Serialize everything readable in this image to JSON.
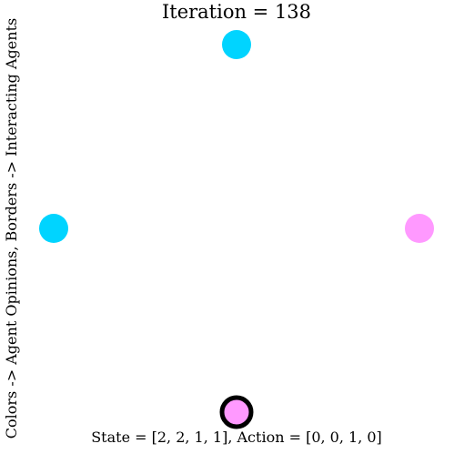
{
  "title": "Iteration = 138",
  "ylabel": "Colors -> Agent Opinions, Borders -> Interacting Agents",
  "footer": "State = [2, 2, 1, 1], Action = [0, 0, 1, 0]",
  "colors": {
    "opinion_a": "#00d4ff",
    "opinion_b": "#ff99ff",
    "interacting_border": "#000000"
  },
  "agents": [
    {
      "name": "agent-top",
      "opinion": "opinion_a",
      "interacting": false
    },
    {
      "name": "agent-left",
      "opinion": "opinion_a",
      "interacting": false
    },
    {
      "name": "agent-right",
      "opinion": "opinion_b",
      "interacting": false
    },
    {
      "name": "agent-bottom",
      "opinion": "opinion_b",
      "interacting": true
    }
  ]
}
